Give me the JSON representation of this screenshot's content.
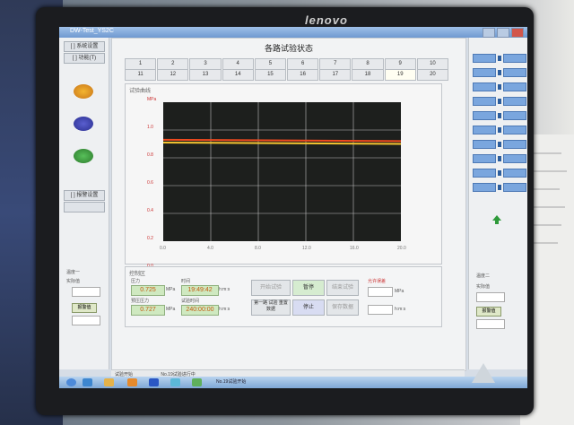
{
  "monitor": {
    "brand": "lenovo"
  },
  "window": {
    "title": "DW-Test_YS2C"
  },
  "left_panel": {
    "buttons": [
      "[ ] 系统设置",
      "[ ] 功能(T)",
      "[ ] 报警设置"
    ],
    "labels": [
      "温度一",
      "实际值",
      "报警值"
    ]
  },
  "main": {
    "title": "各路试验状态",
    "tabs_row1": [
      "1",
      "2",
      "3",
      "4",
      "5",
      "6",
      "7",
      "8",
      "9",
      "10"
    ],
    "tabs_row2": [
      "11",
      "12",
      "13",
      "14",
      "15",
      "16",
      "17",
      "18",
      "19",
      "20"
    ],
    "active_tab": "19",
    "chart_frame_label": "试验曲线",
    "control_frame_label": "控制区",
    "readouts": {
      "pressure_label": "压力",
      "pressure_value": "0.725",
      "pressure_unit": "MPa",
      "time_label": "时间",
      "time_value": "19:49:42",
      "time_unit": "h:m:s",
      "setpress_label": "预压压力",
      "setpress_value": "0.727",
      "setpress_unit": "MPa",
      "settime_label": "试验时间",
      "settime_value": "240:00:00",
      "settime_unit": "h:m:s",
      "limit_label": "允许误差",
      "limit_unit": "MPa",
      "limit_unit2": "h:m:s"
    },
    "controls": [
      "开始试验",
      "暂停",
      "结束试验",
      "第一路 试验 重置数据",
      "停止",
      "保存数据"
    ]
  },
  "right_panel": {
    "label2": "温度二",
    "labels": [
      "实际值",
      "报警值"
    ]
  },
  "status_bar": {
    "left": "试验开始",
    "mid": "No.19试验进行中",
    "bottom": "No.19试验开始"
  },
  "chart_data": {
    "type": "line",
    "y_ticks": [
      "MPa",
      "1.0",
      "0.8",
      "0.6",
      "0.4",
      "0.2",
      "0.0"
    ],
    "x_ticks": [
      "0.0",
      "4.0",
      "8.0",
      "12.0",
      "16.0",
      "20.0"
    ],
    "ylim": [
      0,
      1
    ],
    "xlim": [
      0,
      20
    ],
    "grid": true,
    "series": [
      {
        "color": "#f04a1f",
        "x": [
          0,
          20
        ],
        "y": [
          0.73,
          0.72
        ]
      },
      {
        "color": "#f5c531",
        "x": [
          0,
          20
        ],
        "y": [
          0.71,
          0.7
        ]
      }
    ]
  },
  "colors": {
    "plot_bg": "#1d1f1d",
    "accent": "#6f99d0"
  }
}
